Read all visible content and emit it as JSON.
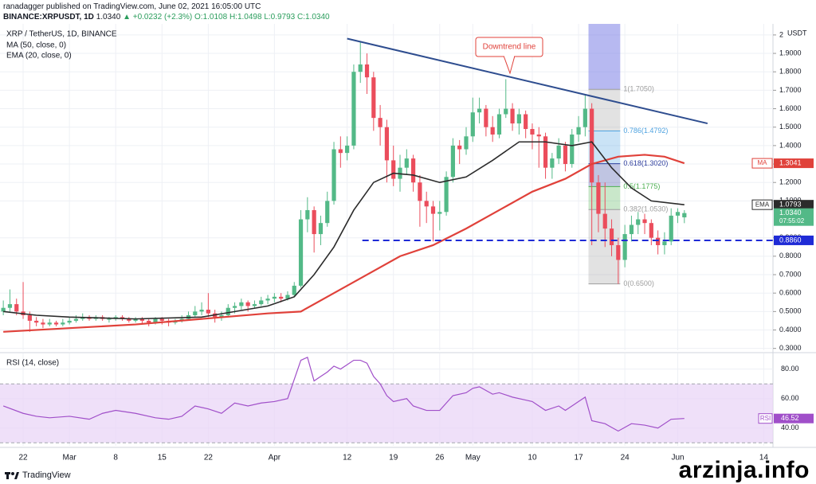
{
  "header": {
    "published": "ranadagger published on TradingView.com, June 02, 2021 16:05:00 UTC",
    "symbol": "BINANCE:XRPUSDT, 1D",
    "last": "1.0340",
    "change": "▲ +0.0232 (+2.3%)",
    "ohlc": "O:1.0108 H:1.0498 L:0.9793 C:1.0340"
  },
  "footer": {
    "brand": "TradingView",
    "watermark": "arzinja.info"
  },
  "chart_data": {
    "type": "candlestick",
    "title": "XRP / TetherUS, 1D, BINANCE",
    "currency": "USDT",
    "up_color": "#53b987",
    "down_color": "#eb4d5c",
    "grid": true,
    "xlim": [
      -0.5,
      116.4
    ],
    "xticks": [
      {
        "value": 3,
        "label": "22"
      },
      {
        "value": 10,
        "label": "Mar"
      },
      {
        "value": 17,
        "label": "8"
      },
      {
        "value": 24,
        "label": "15"
      },
      {
        "value": 31,
        "label": "22"
      },
      {
        "value": 41,
        "label": "Apr"
      },
      {
        "value": 52,
        "label": "12"
      },
      {
        "value": 59,
        "label": "19"
      },
      {
        "value": 66,
        "label": "26"
      },
      {
        "value": 71,
        "label": "May"
      },
      {
        "value": 80,
        "label": "10"
      },
      {
        "value": 87,
        "label": "17"
      },
      {
        "value": 94,
        "label": "24"
      },
      {
        "value": 102,
        "label": "Jun"
      },
      {
        "value": 115,
        "label": "14"
      }
    ],
    "ylim": [
      0.29,
      2.06
    ],
    "yticks": [
      2,
      {
        "value": 1.9,
        "label": "1.9000"
      },
      {
        "value": 1.8,
        "label": "1.8000"
      },
      {
        "value": 1.7,
        "label": "1.7000"
      },
      {
        "value": 1.6,
        "label": "1.6000"
      },
      {
        "value": 1.5,
        "label": "1.5000"
      },
      {
        "value": 1.4,
        "label": "1.4000"
      },
      {
        "value": 1.3,
        "label": "1.3000"
      },
      {
        "value": 1.2,
        "label": "1.2000"
      },
      {
        "value": 1.1,
        "label": "1.1000"
      },
      {
        "value": 0.9,
        "label": "0.9000"
      },
      {
        "value": 0.8,
        "label": "0.8000"
      },
      {
        "value": 0.7,
        "label": "0.7000"
      },
      {
        "value": 0.6,
        "label": "0.6000"
      },
      {
        "value": 0.5,
        "label": "0.5000"
      },
      {
        "value": 0.4,
        "label": "0.4000"
      },
      {
        "value": 0.3,
        "label": "0.3000"
      }
    ],
    "candles": [
      [
        0.5,
        0.56,
        0.48,
        0.52
      ],
      [
        0.52,
        0.62,
        0.5,
        0.54
      ],
      [
        0.54,
        0.57,
        0.48,
        0.5
      ],
      [
        0.5,
        0.66,
        0.46,
        0.48
      ],
      [
        0.48,
        0.5,
        0.39,
        0.45
      ],
      [
        0.45,
        0.47,
        0.42,
        0.44
      ],
      [
        0.44,
        0.46,
        0.41,
        0.43
      ],
      [
        0.43,
        0.46,
        0.42,
        0.44
      ],
      [
        0.44,
        0.45,
        0.42,
        0.43
      ],
      [
        0.43,
        0.46,
        0.42,
        0.44
      ],
      [
        0.44,
        0.47,
        0.43,
        0.45
      ],
      [
        0.45,
        0.48,
        0.44,
        0.46
      ],
      [
        0.46,
        0.49,
        0.45,
        0.47
      ],
      [
        0.47,
        0.48,
        0.45,
        0.46
      ],
      [
        0.46,
        0.48,
        0.45,
        0.47
      ],
      [
        0.47,
        0.48,
        0.45,
        0.46
      ],
      [
        0.46,
        0.47,
        0.44,
        0.46
      ],
      [
        0.46,
        0.48,
        0.45,
        0.47
      ],
      [
        0.47,
        0.48,
        0.45,
        0.46
      ],
      [
        0.46,
        0.47,
        0.44,
        0.45
      ],
      [
        0.45,
        0.47,
        0.44,
        0.46
      ],
      [
        0.46,
        0.47,
        0.43,
        0.45
      ],
      [
        0.45,
        0.46,
        0.42,
        0.44
      ],
      [
        0.44,
        0.47,
        0.43,
        0.46
      ],
      [
        0.46,
        0.47,
        0.43,
        0.45
      ],
      [
        0.45,
        0.46,
        0.42,
        0.44
      ],
      [
        0.44,
        0.46,
        0.43,
        0.45
      ],
      [
        0.45,
        0.48,
        0.44,
        0.46
      ],
      [
        0.46,
        0.5,
        0.45,
        0.48
      ],
      [
        0.48,
        0.53,
        0.47,
        0.5
      ],
      [
        0.5,
        0.55,
        0.48,
        0.51
      ],
      [
        0.51,
        0.6,
        0.47,
        0.49
      ],
      [
        0.49,
        0.51,
        0.44,
        0.47
      ],
      [
        0.47,
        0.5,
        0.45,
        0.48
      ],
      [
        0.48,
        0.54,
        0.47,
        0.52
      ],
      [
        0.52,
        0.55,
        0.49,
        0.53
      ],
      [
        0.53,
        0.57,
        0.51,
        0.55
      ],
      [
        0.55,
        0.56,
        0.5,
        0.53
      ],
      [
        0.53,
        0.56,
        0.52,
        0.54
      ],
      [
        0.54,
        0.58,
        0.53,
        0.56
      ],
      [
        0.56,
        0.59,
        0.54,
        0.57
      ],
      [
        0.57,
        0.6,
        0.55,
        0.58
      ],
      [
        0.58,
        0.6,
        0.55,
        0.57
      ],
      [
        0.57,
        0.61,
        0.56,
        0.59
      ],
      [
        0.59,
        0.66,
        0.58,
        0.64
      ],
      [
        0.64,
        1.05,
        0.63,
        1.0
      ],
      [
        1.0,
        1.12,
        0.93,
        1.05
      ],
      [
        1.05,
        1.07,
        0.82,
        0.92
      ],
      [
        0.92,
        1.02,
        0.86,
        0.98
      ],
      [
        0.98,
        1.15,
        0.96,
        1.1
      ],
      [
        1.1,
        1.42,
        1.08,
        1.38
      ],
      [
        1.38,
        1.45,
        1.28,
        1.36
      ],
      [
        1.36,
        1.45,
        1.32,
        1.4
      ],
      [
        1.4,
        1.84,
        1.38,
        1.8
      ],
      [
        1.8,
        1.96,
        1.74,
        1.84
      ],
      [
        1.84,
        1.9,
        1.68,
        1.77
      ],
      [
        1.77,
        1.8,
        1.48,
        1.55
      ],
      [
        1.55,
        1.62,
        1.4,
        1.5
      ],
      [
        1.5,
        1.54,
        1.2,
        1.32
      ],
      [
        1.32,
        1.4,
        1.18,
        1.22
      ],
      [
        1.22,
        1.35,
        1.15,
        1.28
      ],
      [
        1.28,
        1.38,
        1.24,
        1.33
      ],
      [
        1.33,
        1.35,
        1.15,
        1.2
      ],
      [
        1.2,
        1.24,
        0.96,
        1.1
      ],
      [
        1.1,
        1.15,
        0.98,
        1.07
      ],
      [
        1.07,
        1.1,
        0.88,
        1.03
      ],
      [
        1.03,
        1.1,
        0.94,
        1.04
      ],
      [
        1.04,
        1.26,
        1.02,
        1.23
      ],
      [
        1.23,
        1.44,
        1.2,
        1.4
      ],
      [
        1.4,
        1.43,
        1.3,
        1.38
      ],
      [
        1.38,
        1.5,
        1.35,
        1.45
      ],
      [
        1.45,
        1.66,
        1.42,
        1.58
      ],
      [
        1.58,
        1.66,
        1.52,
        1.6
      ],
      [
        1.6,
        1.62,
        1.45,
        1.5
      ],
      [
        1.5,
        1.56,
        1.42,
        1.46
      ],
      [
        1.46,
        1.6,
        1.44,
        1.57
      ],
      [
        1.57,
        1.76,
        1.55,
        1.6
      ],
      [
        1.6,
        1.63,
        1.48,
        1.52
      ],
      [
        1.52,
        1.6,
        1.46,
        1.57
      ],
      [
        1.57,
        1.59,
        1.44,
        1.49
      ],
      [
        1.49,
        1.52,
        1.38,
        1.46
      ],
      [
        1.46,
        1.5,
        1.28,
        1.45
      ],
      [
        1.45,
        1.47,
        1.22,
        1.28
      ],
      [
        1.28,
        1.36,
        1.22,
        1.33
      ],
      [
        1.33,
        1.44,
        1.3,
        1.4
      ],
      [
        1.4,
        1.42,
        1.26,
        1.3
      ],
      [
        1.3,
        1.49,
        1.28,
        1.46
      ],
      [
        1.46,
        1.56,
        1.42,
        1.5
      ],
      [
        1.5,
        1.68,
        1.45,
        1.6
      ],
      [
        1.6,
        1.63,
        0.86,
        1.2
      ],
      [
        1.2,
        1.24,
        0.93,
        1.03
      ],
      [
        1.03,
        1.2,
        0.85,
        0.95
      ],
      [
        0.95,
        1.0,
        0.8,
        0.86
      ],
      [
        0.86,
        0.9,
        0.65,
        0.78
      ],
      [
        0.78,
        0.97,
        0.74,
        0.92
      ],
      [
        0.92,
        1.02,
        0.88,
        0.97
      ],
      [
        0.97,
        1.04,
        0.92,
        1.0
      ],
      [
        1.0,
        1.03,
        0.92,
        0.98
      ],
      [
        0.98,
        1.0,
        0.86,
        0.9
      ],
      [
        0.9,
        0.94,
        0.81,
        0.86
      ],
      [
        0.86,
        0.93,
        0.81,
        0.88
      ],
      [
        0.88,
        1.06,
        0.86,
        1.02
      ],
      [
        1.02,
        1.06,
        0.98,
        1.04
      ],
      [
        1.0108,
        1.0498,
        0.9793,
        1.034
      ]
    ],
    "series": [
      {
        "name": "MA (50, close, 0)",
        "color": "#e0413a",
        "x": [
          0,
          10,
          20,
          30,
          40,
          45,
          50,
          55,
          60,
          65,
          70,
          75,
          80,
          85,
          89,
          93,
          97,
          100,
          103
        ],
        "values": [
          0.39,
          0.41,
          0.43,
          0.46,
          0.49,
          0.5,
          0.6,
          0.7,
          0.8,
          0.86,
          0.95,
          1.05,
          1.15,
          1.22,
          1.3,
          1.34,
          1.35,
          1.34,
          1.3041
        ]
      },
      {
        "name": "EMA (20, close, 0)",
        "color": "#2b2b2b",
        "x": [
          0,
          5,
          10,
          20,
          30,
          35,
          40,
          44,
          47,
          50,
          53,
          56,
          59,
          62,
          66,
          70,
          74,
          78,
          82,
          86,
          89,
          92,
          95,
          98,
          103
        ],
        "values": [
          0.5,
          0.48,
          0.47,
          0.46,
          0.47,
          0.5,
          0.53,
          0.58,
          0.7,
          0.85,
          1.05,
          1.2,
          1.25,
          1.24,
          1.2,
          1.23,
          1.32,
          1.42,
          1.42,
          1.4,
          1.42,
          1.28,
          1.17,
          1.1,
          1.0793
        ]
      }
    ],
    "tags": [
      {
        "name": "MA",
        "value": 1.3041,
        "color": "#e0413a"
      },
      {
        "name": "EMA",
        "value": 1.0793,
        "color": "#2b2b2b"
      },
      {
        "value": 1.034,
        "label": "1.0340",
        "countdown": "07:55:02",
        "color": "#53b987"
      },
      {
        "value": 0.886,
        "label": "0.8860",
        "color": "#1f2bd6"
      }
    ],
    "trendline": {
      "x": [
        52,
        106.5
      ],
      "values": [
        1.98,
        1.52
      ],
      "color": "#2e4d8f"
    },
    "annotation": "Downtrend line",
    "support": {
      "x": [
        54.3,
        116.4
      ],
      "value": 0.886,
      "color": "#1f2bd6"
    },
    "fib": {
      "x": [
        88.5,
        93.3
      ],
      "levels": [
        {
          "value": 1.705,
          "label": "1(1.7050)",
          "color": "#9e9e9e"
        },
        {
          "value": 1.4792,
          "label": "0.786(1.4792)",
          "color": "#4fa3e0"
        },
        {
          "value": 1.302,
          "label": "0.618(1.3020)",
          "color": "#2f3f9e"
        },
        {
          "value": 1.1775,
          "label": "0.5(1.1775)",
          "color": "#4caf50"
        },
        {
          "value": 1.053,
          "label": "0.382(1.0530)",
          "color": "#9e9e9e"
        },
        {
          "value": 0.65,
          "label": "0(0.6500)",
          "color": "#9e9e9e"
        }
      ]
    },
    "rsi": {
      "name": "RSI (14, close)",
      "tag": "RSI",
      "last": 46.52,
      "color": "#a04fc9",
      "ylim": [
        28,
        89
      ],
      "yticks": [
        {
          "value": 40,
          "label": "40.00"
        },
        {
          "value": 60,
          "label": "60.00"
        },
        {
          "value": 80,
          "label": "80.00"
        }
      ],
      "band": [
        30,
        70
      ],
      "x": [
        0,
        3,
        5,
        7,
        10,
        13,
        15,
        17,
        20,
        23,
        25,
        27,
        29,
        31,
        33,
        35,
        37,
        39,
        41,
        43,
        45,
        46,
        47,
        48,
        49,
        50,
        51,
        52,
        53,
        54,
        55,
        56,
        57,
        58,
        59,
        61,
        62,
        64,
        66,
        67,
        68,
        70,
        71,
        72,
        74,
        75,
        77,
        79,
        80,
        82,
        84,
        85,
        87,
        88,
        89,
        91,
        93,
        95,
        97,
        99,
        101,
        103
      ],
      "values": [
        55,
        50,
        48,
        47,
        48,
        46,
        50,
        52,
        50,
        47,
        46,
        48,
        55,
        53,
        50,
        57,
        55,
        57,
        58,
        60,
        86,
        88,
        72,
        75,
        78,
        82,
        80,
        83,
        86,
        86,
        84,
        75,
        70,
        62,
        58,
        60,
        55,
        52,
        52,
        57,
        62,
        64,
        67,
        68,
        63,
        64,
        61,
        59,
        58,
        52,
        55,
        52,
        58,
        61,
        45,
        43,
        38,
        43,
        42,
        40,
        46,
        46.52
      ]
    }
  }
}
